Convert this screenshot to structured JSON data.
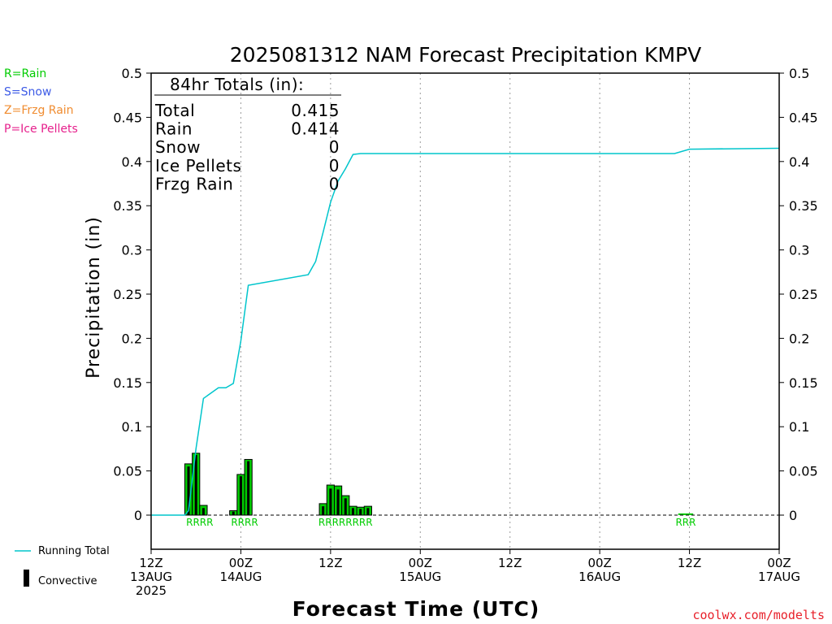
{
  "chart_data": {
    "type": "bar",
    "title": "2025081312 NAM Forecast Precipitation KMPV",
    "xlabel": "Forecast Time (UTC)",
    "ylabel": "Precipitation (in)",
    "ylim": [
      0,
      0.5
    ],
    "xlim_hours": [
      0,
      84
    ],
    "yticks": [
      "0",
      "0.05",
      "0.1",
      "0.15",
      "0.2",
      "0.25",
      "0.3",
      "0.35",
      "0.4",
      "0.45",
      "0.5"
    ],
    "xticks": [
      {
        "hour": 0,
        "lines": [
          "12Z",
          "13AUG",
          "2025"
        ]
      },
      {
        "hour": 12,
        "lines": [
          "00Z",
          "14AUG"
        ]
      },
      {
        "hour": 24,
        "lines": [
          "12Z"
        ]
      },
      {
        "hour": 36,
        "lines": [
          "00Z",
          "15AUG"
        ]
      },
      {
        "hour": 48,
        "lines": [
          "12Z"
        ]
      },
      {
        "hour": 60,
        "lines": [
          "00Z",
          "16AUG"
        ]
      },
      {
        "hour": 72,
        "lines": [
          "12Z"
        ]
      },
      {
        "hour": 84,
        "lines": [
          "00Z",
          "17AUG"
        ]
      }
    ],
    "grid": "vertical dotted",
    "bar_hours": [
      5,
      6,
      7,
      11,
      12,
      13,
      23,
      24,
      25,
      26,
      27,
      28,
      29
    ],
    "bar_values": [
      0.058,
      0.07,
      0.011,
      0.005,
      0.046,
      0.063,
      0.013,
      0.034,
      0.033,
      0.022,
      0.01,
      0.009,
      0.01
    ],
    "bar_convective": [
      0.055,
      0.068,
      0.008,
      0.004,
      0.044,
      0.061,
      0.01,
      0.03,
      0.029,
      0.019,
      0.008,
      0.007,
      0.008
    ],
    "trace_hours": [
      71,
      72
    ],
    "trace_values": [
      0.001,
      0.001
    ],
    "running_total": {
      "x": [
        0,
        4.5,
        5,
        6,
        7,
        9,
        10,
        11,
        12,
        13,
        21,
        22,
        23,
        24,
        25,
        26,
        27,
        28,
        35,
        70,
        72,
        84
      ],
      "y": [
        0,
        0,
        0.005,
        0.075,
        0.132,
        0.144,
        0.144,
        0.149,
        0.197,
        0.26,
        0.272,
        0.287,
        0.32,
        0.354,
        0.378,
        0.392,
        0.408,
        0.409,
        0.409,
        0.409,
        0.414,
        0.415
      ]
    },
    "ptype_labels": [
      {
        "hour": 6.5,
        "text": "RRRR"
      },
      {
        "hour": 12.5,
        "text": "RRRR"
      },
      {
        "hour": 26,
        "text": "RRRRRRRR"
      },
      {
        "hour": 71.5,
        "text": "RRR"
      }
    ],
    "colors": {
      "bar": "#00cc00",
      "convective": "#000000",
      "running_total": "#00c5cc",
      "rain": "#00cc00",
      "snow": "#3c5ae6",
      "frzg": "#f08c30",
      "ice": "#e6208c",
      "credit": "#e8202a"
    }
  },
  "totals_box": {
    "header": "84hr Totals (in):",
    "rows": [
      {
        "label": "Total",
        "value": "0.415"
      },
      {
        "label": "Rain",
        "value": "0.414"
      },
      {
        "label": "Snow",
        "value": "0"
      },
      {
        "label": "Ice Pellets",
        "value": "0"
      },
      {
        "label": "Frzg Rain",
        "value": "0"
      }
    ]
  },
  "type_legend": [
    {
      "text": "R=Rain",
      "color": "#00cc00"
    },
    {
      "text": "S=Snow",
      "color": "#3c5ae6"
    },
    {
      "text": "Z=Frzg Rain",
      "color": "#f08c30"
    },
    {
      "text": "P=Ice Pellets",
      "color": "#e6208c"
    }
  ],
  "bottom_legend": {
    "running_total": "Running Total",
    "convective": "Convective"
  },
  "credit": "coolwx.com/modelts"
}
